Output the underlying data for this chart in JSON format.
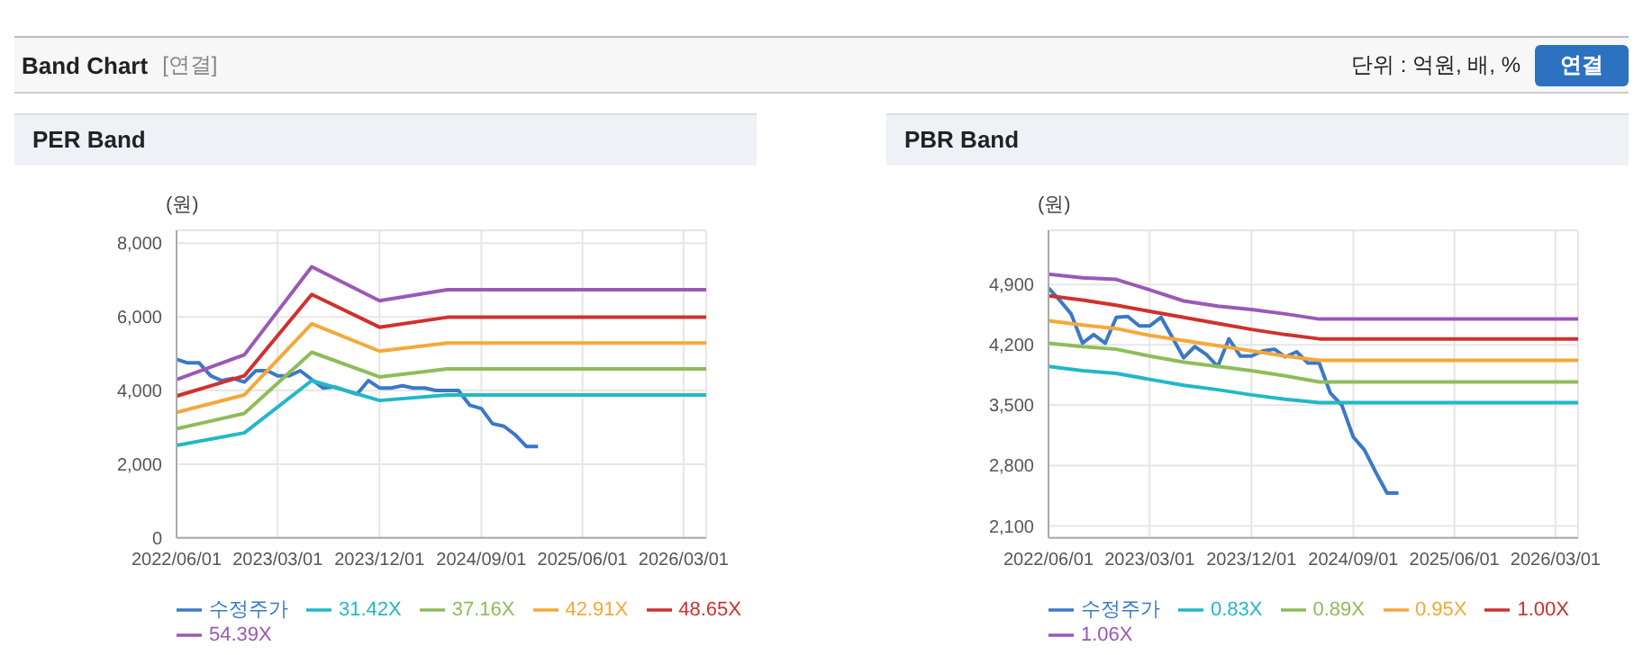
{
  "chart_data": [
    {
      "type": "line",
      "title": "PER Band",
      "ylabel": "(원)",
      "annotations": [
        "Band Chart",
        "[연결]",
        "단위 : 억원, 배, %",
        "연결"
      ],
      "grid": true,
      "legend": "bottom",
      "marker": "none",
      "line_style": "solid",
      "xlim": [
        "2022-06-01",
        "2026-05-01"
      ],
      "xticks": [
        {
          "value": "2022-06-01",
          "label": "2022/06/01"
        },
        {
          "value": "2023-03-01",
          "label": "2023/03/01"
        },
        {
          "value": "2023-12-01",
          "label": "2023/12/01"
        },
        {
          "value": "2024-09-01",
          "label": "2024/09/01"
        },
        {
          "value": "2025-06-01",
          "label": "2025/06/01"
        },
        {
          "value": "2026-03-01",
          "label": "2026/03/01"
        }
      ],
      "ylim": [
        0,
        8350
      ],
      "yticks": [
        {
          "value": 0,
          "label": "0"
        },
        {
          "value": 2000,
          "label": "2,000"
        },
        {
          "value": 4000,
          "label": "4,000"
        },
        {
          "value": 6000,
          "label": "6,000"
        },
        {
          "value": 8000,
          "label": "8,000"
        }
      ],
      "series": [
        {
          "name": "수정주가",
          "color": "#3a78c9",
          "x": [
            "2022-06",
            "2022-07",
            "2022-08",
            "2022-09",
            "2022-10",
            "2022-11",
            "2022-12",
            "2023-01",
            "2023-02",
            "2023-03",
            "2023-04",
            "2023-05",
            "2023-06",
            "2023-07",
            "2023-08",
            "2023-09",
            "2023-10",
            "2023-11",
            "2023-12",
            "2024-01",
            "2024-02",
            "2024-03",
            "2024-04",
            "2024-05",
            "2024-06",
            "2024-07",
            "2024-08",
            "2024-09",
            "2024-10",
            "2024-11",
            "2024-12",
            "2025-01",
            "2025-02"
          ],
          "values": [
            4850,
            4750,
            4750,
            4400,
            4270,
            4330,
            4230,
            4540,
            4540,
            4400,
            4400,
            4540,
            4300,
            4070,
            4100,
            4000,
            3900,
            4270,
            4070,
            4070,
            4130,
            4070,
            4070,
            4000,
            4000,
            4000,
            3600,
            3510,
            3100,
            3030,
            2800,
            2480,
            2480
          ]
        },
        {
          "name": "31.42X",
          "color": "#22b8c8",
          "x": [
            "2022-06",
            "2022-12",
            "2023-06",
            "2023-12",
            "2024-06",
            "2026-05"
          ],
          "values": [
            2510,
            2850,
            4270,
            3730,
            3880,
            3880
          ]
        },
        {
          "name": "37.16X",
          "color": "#8fbc5a",
          "x": [
            "2022-06",
            "2022-12",
            "2023-06",
            "2023-12",
            "2024-06",
            "2026-05"
          ],
          "values": [
            2960,
            3380,
            5040,
            4370,
            4590,
            4590
          ]
        },
        {
          "name": "42.91X",
          "color": "#f5a83a",
          "x": [
            "2022-06",
            "2022-12",
            "2023-06",
            "2023-12",
            "2024-06",
            "2026-05"
          ],
          "values": [
            3410,
            3880,
            5810,
            5070,
            5290,
            5290
          ]
        },
        {
          "name": "48.65X",
          "color": "#d0312d",
          "x": [
            "2022-06",
            "2022-12",
            "2023-06",
            "2023-12",
            "2024-06",
            "2026-05"
          ],
          "values": [
            3850,
            4400,
            6610,
            5720,
            5990,
            5990
          ]
        },
        {
          "name": "54.39X",
          "color": "#9b59b6",
          "x": [
            "2022-06",
            "2022-12",
            "2023-06",
            "2023-12",
            "2024-06",
            "2026-05"
          ],
          "values": [
            4300,
            4970,
            7360,
            6440,
            6740,
            6740
          ]
        }
      ]
    },
    {
      "type": "line",
      "title": "PBR Band",
      "ylabel": "(원)",
      "grid": true,
      "legend": "bottom",
      "marker": "none",
      "line_style": "solid",
      "xlim": [
        "2022-06-01",
        "2026-05-01"
      ],
      "xticks": [
        {
          "value": "2022-06-01",
          "label": "2022/06/01"
        },
        {
          "value": "2023-03-01",
          "label": "2023/03/01"
        },
        {
          "value": "2023-12-01",
          "label": "2023/12/01"
        },
        {
          "value": "2024-09-01",
          "label": "2024/09/01"
        },
        {
          "value": "2025-06-01",
          "label": "2025/06/01"
        },
        {
          "value": "2026-03-01",
          "label": "2026/03/01"
        }
      ],
      "ylim": [
        1960,
        5530
      ],
      "yticks": [
        {
          "value": 2100,
          "label": "2,100"
        },
        {
          "value": 2800,
          "label": "2,800"
        },
        {
          "value": 3500,
          "label": "3,500"
        },
        {
          "value": 4200,
          "label": "4,200"
        },
        {
          "value": 4900,
          "label": "4,900"
        }
      ],
      "series": [
        {
          "name": "수정주가",
          "color": "#3a78c9",
          "x": [
            "2022-06",
            "2022-07",
            "2022-08",
            "2022-09",
            "2022-10",
            "2022-11",
            "2022-12",
            "2023-01",
            "2023-02",
            "2023-03",
            "2023-04",
            "2023-05",
            "2023-06",
            "2023-07",
            "2023-08",
            "2023-09",
            "2023-10",
            "2023-11",
            "2023-12",
            "2024-01",
            "2024-02",
            "2024-03",
            "2024-04",
            "2024-05",
            "2024-06",
            "2024-07",
            "2024-08",
            "2024-09",
            "2024-10",
            "2024-11",
            "2024-12",
            "2025-01"
          ],
          "values": [
            4860,
            4720,
            4560,
            4220,
            4320,
            4220,
            4520,
            4530,
            4420,
            4420,
            4520,
            4290,
            4050,
            4180,
            4090,
            3950,
            4270,
            4070,
            4070,
            4130,
            4150,
            4060,
            4120,
            3990,
            3990,
            3640,
            3500,
            3130,
            2980,
            2720,
            2480,
            2480
          ]
        },
        {
          "name": "0.83X",
          "color": "#22b8c8",
          "x": [
            "2022-06",
            "2022-09",
            "2022-12",
            "2023-03",
            "2023-06",
            "2023-09",
            "2023-12",
            "2024-03",
            "2024-06",
            "2026-05"
          ],
          "values": [
            3950,
            3900,
            3870,
            3800,
            3730,
            3680,
            3620,
            3570,
            3530,
            3530
          ]
        },
        {
          "name": "0.89X",
          "color": "#8fbc5a",
          "x": [
            "2022-06",
            "2022-09",
            "2022-12",
            "2023-03",
            "2023-06",
            "2023-09",
            "2023-12",
            "2024-03",
            "2024-06",
            "2026-05"
          ],
          "values": [
            4220,
            4180,
            4150,
            4070,
            4000,
            3950,
            3900,
            3840,
            3770,
            3770
          ]
        },
        {
          "name": "0.95X",
          "color": "#f5a83a",
          "x": [
            "2022-06",
            "2022-09",
            "2022-12",
            "2023-03",
            "2023-06",
            "2023-09",
            "2023-12",
            "2024-03",
            "2024-06",
            "2026-05"
          ],
          "values": [
            4480,
            4430,
            4390,
            4310,
            4250,
            4190,
            4130,
            4070,
            4020,
            4020
          ]
        },
        {
          "name": "1.00X",
          "color": "#d0312d",
          "x": [
            "2022-06",
            "2022-09",
            "2022-12",
            "2023-03",
            "2023-06",
            "2023-09",
            "2023-12",
            "2024-03",
            "2024-06",
            "2026-05"
          ],
          "values": [
            4770,
            4720,
            4660,
            4590,
            4520,
            4450,
            4380,
            4320,
            4270,
            4270
          ]
        },
        {
          "name": "1.06X",
          "color": "#9b59b6",
          "x": [
            "2022-06",
            "2022-09",
            "2022-12",
            "2023-03",
            "2023-06",
            "2023-09",
            "2023-12",
            "2024-03",
            "2024-06",
            "2026-05"
          ],
          "values": [
            5020,
            4980,
            4960,
            4840,
            4710,
            4650,
            4610,
            4560,
            4500,
            4500
          ]
        }
      ]
    }
  ]
}
